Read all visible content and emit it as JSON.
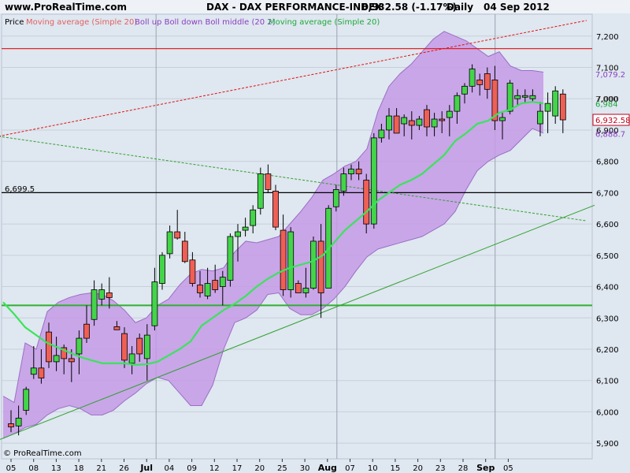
{
  "header": {
    "site": "www.ProRealTime.com",
    "title": "DAX - DAX PERFORMANCE-INDEX",
    "quote": "6,932.58 (-1.17%)",
    "period": "Daily",
    "date": "04 Sep 2012"
  },
  "legend": {
    "price": "Price",
    "ma_top": "Moving average (Simple 20)",
    "boll": "Boll up Boll down Boll middle (20 2)",
    "ma": "Moving average (Simple 20)"
  },
  "footer": {
    "copyright": "© ProRealTime.com"
  },
  "colors": {
    "background": "#dfe7f0",
    "band_fill": "#c59ae6",
    "band_edge": "#9a6fc4",
    "up": "#44d44a",
    "down": "#ef5f55",
    "ma": "#39e45a",
    "resistance": "#e01010",
    "support": "#30b030",
    "level": "#000000"
  },
  "chart_data": {
    "type": "candlestick",
    "ylim": [
      5850,
      7270
    ],
    "yticks": [
      "5,900",
      "6,000",
      "6,100",
      "6,200",
      "6,300",
      "6,400",
      "6,500",
      "6,600",
      "6,700",
      "6,800",
      "6,900",
      "7,000",
      "7,100",
      "7,200"
    ],
    "xticks": [
      "05",
      "08",
      "13",
      "18",
      "21",
      "26",
      "Jul",
      "04",
      "09",
      "12",
      "17",
      "20",
      "25",
      "30",
      "Aug",
      "07",
      "10",
      "15",
      "20",
      "23",
      "28",
      "Sep",
      "05"
    ],
    "month_labels": [
      "Jul",
      "Aug",
      "Sep"
    ],
    "candles": [
      {
        "o": 5962,
        "h": 6005,
        "l": 5935,
        "c": 5952
      },
      {
        "o": 5955,
        "h": 6020,
        "l": 5925,
        "c": 5980
      },
      {
        "o": 6005,
        "h": 6080,
        "l": 5990,
        "c": 6072
      },
      {
        "o": 6120,
        "h": 6210,
        "l": 6105,
        "c": 6140
      },
      {
        "o": 6140,
        "h": 6200,
        "l": 6090,
        "c": 6108
      },
      {
        "o": 6255,
        "h": 6285,
        "l": 6140,
        "c": 6160
      },
      {
        "o": 6160,
        "h": 6240,
        "l": 6130,
        "c": 6180
      },
      {
        "o": 6205,
        "h": 6215,
        "l": 6120,
        "c": 6170
      },
      {
        "o": 6170,
        "h": 6200,
        "l": 6095,
        "c": 6160
      },
      {
        "o": 6185,
        "h": 6260,
        "l": 6120,
        "c": 6235
      },
      {
        "o": 6280,
        "h": 6340,
        "l": 6220,
        "c": 6235
      },
      {
        "o": 6295,
        "h": 6420,
        "l": 6275,
        "c": 6390
      },
      {
        "o": 6360,
        "h": 6410,
        "l": 6340,
        "c": 6390
      },
      {
        "o": 6380,
        "h": 6430,
        "l": 6330,
        "c": 6365
      },
      {
        "o": 6272,
        "h": 6290,
        "l": 6262,
        "c": 6262
      },
      {
        "o": 6250,
        "h": 6270,
        "l": 6140,
        "c": 6165
      },
      {
        "o": 6155,
        "h": 6210,
        "l": 6120,
        "c": 6185
      },
      {
        "o": 6235,
        "h": 6250,
        "l": 6160,
        "c": 6185
      },
      {
        "o": 6170,
        "h": 6280,
        "l": 6100,
        "c": 6245
      },
      {
        "o": 6275,
        "h": 6460,
        "l": 6260,
        "c": 6415
      },
      {
        "o": 6410,
        "h": 6510,
        "l": 6390,
        "c": 6500
      },
      {
        "o": 6505,
        "h": 6595,
        "l": 6490,
        "c": 6575
      },
      {
        "o": 6575,
        "h": 6645,
        "l": 6550,
        "c": 6555
      },
      {
        "o": 6545,
        "h": 6575,
        "l": 6475,
        "c": 6480
      },
      {
        "o": 6485,
        "h": 6510,
        "l": 6400,
        "c": 6410
      },
      {
        "o": 6405,
        "h": 6450,
        "l": 6365,
        "c": 6380
      },
      {
        "o": 6370,
        "h": 6460,
        "l": 6360,
        "c": 6410
      },
      {
        "o": 6420,
        "h": 6470,
        "l": 6380,
        "c": 6390
      },
      {
        "o": 6400,
        "h": 6450,
        "l": 6340,
        "c": 6430
      },
      {
        "o": 6420,
        "h": 6570,
        "l": 6400,
        "c": 6560
      },
      {
        "o": 6560,
        "h": 6600,
        "l": 6480,
        "c": 6575
      },
      {
        "o": 6580,
        "h": 6620,
        "l": 6560,
        "c": 6590
      },
      {
        "o": 6595,
        "h": 6660,
        "l": 6570,
        "c": 6645
      },
      {
        "o": 6650,
        "h": 6780,
        "l": 6630,
        "c": 6760
      },
      {
        "o": 6760,
        "h": 6790,
        "l": 6700,
        "c": 6710
      },
      {
        "o": 6705,
        "h": 6725,
        "l": 6580,
        "c": 6590
      },
      {
        "o": 6580,
        "h": 6630,
        "l": 6370,
        "c": 6390
      },
      {
        "o": 6390,
        "h": 6590,
        "l": 6365,
        "c": 6575
      },
      {
        "o": 6410,
        "h": 6420,
        "l": 6380,
        "c": 6380
      },
      {
        "o": 6380,
        "h": 6460,
        "l": 6365,
        "c": 6395
      },
      {
        "o": 6395,
        "h": 6560,
        "l": 6390,
        "c": 6545
      },
      {
        "o": 6545,
        "h": 6600,
        "l": 6300,
        "c": 6380
      },
      {
        "o": 6395,
        "h": 6660,
        "l": 6395,
        "c": 6650
      },
      {
        "o": 6655,
        "h": 6725,
        "l": 6640,
        "c": 6710
      },
      {
        "o": 6705,
        "h": 6780,
        "l": 6690,
        "c": 6760
      },
      {
        "o": 6760,
        "h": 6790,
        "l": 6740,
        "c": 6775
      },
      {
        "o": 6775,
        "h": 6800,
        "l": 6740,
        "c": 6760
      },
      {
        "o": 6740,
        "h": 6760,
        "l": 6570,
        "c": 6600
      },
      {
        "o": 6600,
        "h": 6890,
        "l": 6585,
        "c": 6875
      },
      {
        "o": 6875,
        "h": 6920,
        "l": 6860,
        "c": 6900
      },
      {
        "o": 6900,
        "h": 6970,
        "l": 6870,
        "c": 6945
      },
      {
        "o": 6945,
        "h": 6970,
        "l": 6890,
        "c": 6890
      },
      {
        "o": 6920,
        "h": 6950,
        "l": 6880,
        "c": 6940
      },
      {
        "o": 6930,
        "h": 6960,
        "l": 6870,
        "c": 6915
      },
      {
        "o": 6915,
        "h": 6945,
        "l": 6900,
        "c": 6935
      },
      {
        "o": 6965,
        "h": 6980,
        "l": 6880,
        "c": 6910
      },
      {
        "o": 6910,
        "h": 6955,
        "l": 6880,
        "c": 6935
      },
      {
        "o": 6935,
        "h": 6960,
        "l": 6890,
        "c": 6930
      },
      {
        "o": 6940,
        "h": 6980,
        "l": 6880,
        "c": 6960
      },
      {
        "o": 6960,
        "h": 7020,
        "l": 6920,
        "c": 7010
      },
      {
        "o": 7015,
        "h": 7050,
        "l": 6985,
        "c": 7040
      },
      {
        "o": 7040,
        "h": 7110,
        "l": 7020,
        "c": 7095
      },
      {
        "o": 7060,
        "h": 7080,
        "l": 7010,
        "c": 7045
      },
      {
        "o": 7080,
        "h": 7100,
        "l": 7000,
        "c": 7030
      },
      {
        "o": 7060,
        "h": 7105,
        "l": 6900,
        "c": 6930
      },
      {
        "o": 6930,
        "h": 6960,
        "l": 6870,
        "c": 6940
      },
      {
        "o": 6960,
        "h": 7060,
        "l": 6950,
        "c": 7050
      },
      {
        "o": 7000,
        "h": 7030,
        "l": 6980,
        "c": 7010
      },
      {
        "o": 7005,
        "h": 7030,
        "l": 6985,
        "c": 7010
      },
      {
        "o": 7000,
        "h": 7030,
        "l": 6990,
        "c": 7010
      },
      {
        "o": 6920,
        "h": 6990,
        "l": 6880,
        "c": 6960
      },
      {
        "o": 6960,
        "h": 7020,
        "l": 6890,
        "c": 6985
      },
      {
        "o": 6945,
        "h": 7040,
        "l": 6920,
        "c": 7025
      },
      {
        "o": 7015,
        "h": 7030,
        "l": 6890,
        "c": 6932.58
      }
    ],
    "boll_up": [
      6050,
      6030,
      6220,
      6200,
      6320,
      6350,
      6365,
      6375,
      6380,
      6375,
      6355,
      6325,
      6285,
      6300,
      6340,
      6360,
      6405,
      6440,
      6455,
      6450,
      6460,
      6510,
      6545,
      6540,
      6550,
      6560,
      6600,
      6640,
      6685,
      6740,
      6760,
      6785,
      6800,
      6840,
      6960,
      7040,
      7080,
      7110,
      7150,
      7190,
      7215,
      7200,
      7185,
      7160,
      7135,
      7150,
      7105,
      7090,
      7090,
      7085
    ],
    "boll_down": [
      5915,
      5930,
      5950,
      5960,
      5990,
      6010,
      6020,
      6010,
      5990,
      5990,
      6005,
      6035,
      6060,
      6090,
      6110,
      6100,
      6060,
      6020,
      6020,
      6085,
      6200,
      6285,
      6300,
      6325,
      6375,
      6380,
      6330,
      6310,
      6310,
      6330,
      6360,
      6400,
      6450,
      6495,
      6520,
      6530,
      6540,
      6550,
      6560,
      6580,
      6600,
      6640,
      6710,
      6770,
      6800,
      6820,
      6835,
      6870,
      6905,
      6890
    ],
    "boll_x": [
      0,
      14,
      28,
      42,
      56,
      70,
      84,
      98,
      112,
      126,
      140,
      154,
      168,
      182,
      196,
      210,
      224,
      238,
      252,
      266,
      280,
      294,
      308,
      322,
      336,
      350,
      364,
      378,
      392,
      406,
      420,
      434,
      448,
      462,
      476,
      490,
      504,
      518,
      532,
      546,
      560,
      574,
      588,
      602,
      616,
      630,
      644,
      658,
      672,
      686
    ],
    "ma": [
      6350,
      6312,
      6270,
      6245,
      6220,
      6205,
      6190,
      6175,
      6165,
      6155,
      6155,
      6155,
      6150,
      6152,
      6160,
      6180,
      6200,
      6225,
      6275,
      6300,
      6325,
      6345,
      6370,
      6400,
      6425,
      6445,
      6460,
      6470,
      6480,
      6500,
      6540,
      6580,
      6610,
      6640,
      6675,
      6700,
      6725,
      6740,
      6760,
      6790,
      6820,
      6865,
      6890,
      6920,
      6930,
      6955,
      6965,
      6985,
      6990,
      6985
    ],
    "levels": {
      "resistance": 7160,
      "key_level": 6700,
      "key_label": "6,699.5",
      "support": 6340
    },
    "trendlines": {
      "red_dashed": [
        [
          6880,
          -2
        ],
        [
          7250,
          745
        ]
      ],
      "green_dashed": [
        [
          6880,
          -2
        ],
        [
          6610,
          745
        ]
      ],
      "green_solid": [
        [
          5910,
          -2
        ],
        [
          6660,
          755
        ]
      ]
    },
    "price_tags": [
      {
        "label": "7,079.2",
        "value": 7079.2,
        "color": "#8a3fc0"
      },
      {
        "label": "7,000",
        "value": 7000,
        "color": "#555555"
      },
      {
        "label": "6,984",
        "value": 6984,
        "color": "#1aa63a"
      },
      {
        "label": "6,932.58",
        "value": 6932.58,
        "color": "#c0001a"
      },
      {
        "label": "6,888.7",
        "value": 6888.7,
        "color": "#8a3fc0"
      }
    ]
  }
}
